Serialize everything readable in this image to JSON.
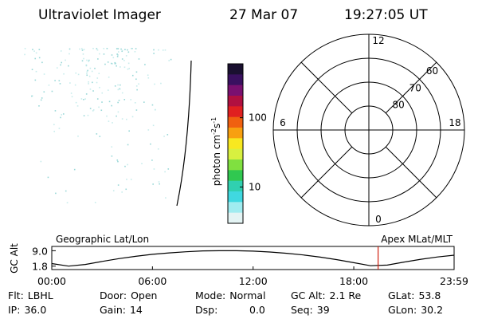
{
  "header": {
    "instrument": "Ultraviolet Imager",
    "date": "27 Mar 07",
    "time": "19:27:05 UT"
  },
  "colorbar": {
    "label": {
      "base": "photon cm",
      "exp1": "-2",
      "unit2": "s",
      "exp2": "-1"
    },
    "log": true,
    "lim": [
      3,
      600
    ],
    "ticks": [
      10,
      100
    ],
    "colors": [
      "#1a1030",
      "#3a1060",
      "#7a1070",
      "#b01040",
      "#e02020",
      "#f06010",
      "#f8a010",
      "#f8e820",
      "#d8f040",
      "#80e040",
      "#30c850",
      "#30d0b0",
      "#40d8e0",
      "#a0ecf0",
      "#e4f4f4"
    ]
  },
  "polar": {
    "rlim": [
      90,
      50
    ],
    "lat_ticks": [
      80,
      70,
      60
    ],
    "mlt_ticks": [
      12,
      18,
      6,
      0
    ]
  },
  "altitude": {
    "ylabel": "GC Alt",
    "left_label": "Geographic Lat/Lon",
    "right_label": "Apex MLat/MLT",
    "ylim": [
      0.2,
      11
    ],
    "yticks": [
      {
        "value": 9.0,
        "label": "9.0"
      },
      1.8
    ],
    "xlim": [
      0,
      23.98
    ],
    "xticks": [
      {
        "value": 0,
        "label": "00:00"
      },
      {
        "value": 6,
        "label": "06:00"
      },
      {
        "value": 12,
        "label": "12:00"
      },
      {
        "value": 18,
        "label": "18:00"
      },
      {
        "value": 23.98,
        "label": "23:59"
      }
    ],
    "x": [
      0,
      1,
      2,
      3,
      4,
      5,
      6,
      7,
      8,
      9,
      10,
      11,
      12,
      13,
      14,
      15,
      16,
      17,
      18,
      19,
      20,
      21,
      22,
      23,
      23.98
    ],
    "y": [
      3.0,
      1.8,
      2.6,
      4.0,
      5.3,
      6.4,
      7.3,
      8.0,
      8.5,
      8.9,
      9.0,
      9.0,
      8.8,
      8.4,
      7.8,
      7.0,
      6.0,
      4.8,
      3.4,
      2.0,
      2.3,
      3.7,
      5.0,
      6.1,
      6.9
    ],
    "marker_x": 19.45,
    "marker_color": "#d02010"
  },
  "footer": {
    "rows": [
      [
        {
          "label": "Flt:",
          "value": "LBHL"
        },
        {
          "label": "Door:",
          "value": "Open"
        },
        {
          "label": "Mode:",
          "value": "Normal"
        },
        {
          "label": "GC Alt:",
          "value": "2.1 Re"
        },
        {
          "label": "GLat:",
          "value": "53.8"
        }
      ],
      [
        {
          "label": "IP:",
          "value": "36.0"
        },
        {
          "label": "Gain:",
          "value": "14"
        },
        {
          "label": "Dsp:",
          "value": "0.0"
        },
        {
          "label": "Seq:",
          "value": "39"
        },
        {
          "label": "GLon:",
          "value": "30.2"
        }
      ]
    ]
  }
}
